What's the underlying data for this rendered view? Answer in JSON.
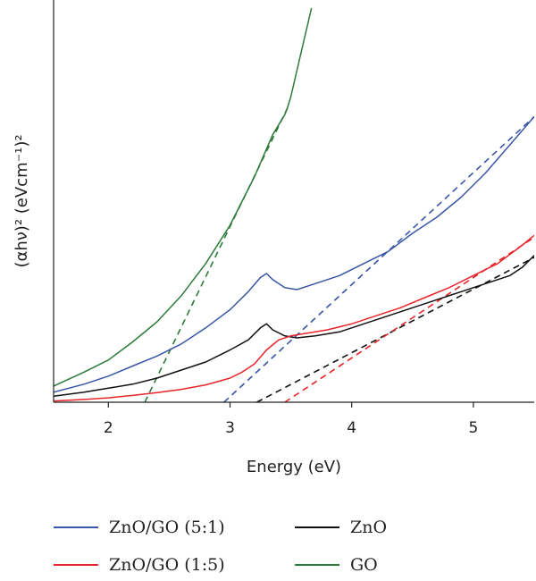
{
  "chart_data": {
    "type": "line",
    "xlabel": "Energy (eV)",
    "ylabel": "(αhν)² (eVcm⁻¹)²",
    "xlim": [
      1.55,
      5.5
    ],
    "ylim": [
      0,
      100
    ],
    "xticks": [
      2,
      3,
      4,
      5
    ],
    "grid": false,
    "legend_position": "bottom",
    "y_tick_labels_shown": false,
    "series": [
      {
        "name": "ZnO/GO (5:1)",
        "color": "#3a56a8",
        "x": [
          1.55,
          1.8,
          2.0,
          2.2,
          2.4,
          2.6,
          2.8,
          3.0,
          3.15,
          3.25,
          3.3,
          3.35,
          3.45,
          3.55,
          3.7,
          3.9,
          4.1,
          4.3,
          4.5,
          4.7,
          4.9,
          5.1,
          5.3,
          5.5
        ],
        "y": [
          2.5,
          4.5,
          6.5,
          9.0,
          11.5,
          14.5,
          18.5,
          23.0,
          27.5,
          31.0,
          32.0,
          30.5,
          28.5,
          28.0,
          29.5,
          31.5,
          34.5,
          37.5,
          42.0,
          46.0,
          51.0,
          57.0,
          64.0,
          71.0
        ]
      },
      {
        "name": "ZnO",
        "color": "#111111",
        "x": [
          1.55,
          1.8,
          2.0,
          2.2,
          2.4,
          2.6,
          2.8,
          3.0,
          3.15,
          3.25,
          3.3,
          3.35,
          3.45,
          3.55,
          3.7,
          3.9,
          4.1,
          4.3,
          4.5,
          4.7,
          4.9,
          5.1,
          5.3,
          5.4,
          5.5
        ],
        "y": [
          1.5,
          2.5,
          3.5,
          4.5,
          6.0,
          8.0,
          10.0,
          13.0,
          15.5,
          18.5,
          19.5,
          18.0,
          16.5,
          16.0,
          16.5,
          17.5,
          19.5,
          21.5,
          23.5,
          25.5,
          27.5,
          29.5,
          31.5,
          33.5,
          36.5
        ]
      },
      {
        "name": "ZnO/GO (1:5)",
        "color": "#e8252a",
        "x": [
          1.55,
          1.8,
          2.0,
          2.2,
          2.4,
          2.6,
          2.8,
          3.0,
          3.1,
          3.2,
          3.3,
          3.4,
          3.5,
          3.6,
          3.8,
          4.0,
          4.2,
          4.4,
          4.6,
          4.8,
          5.0,
          5.2,
          5.4,
          5.5
        ],
        "y": [
          0.3,
          0.7,
          1.1,
          1.7,
          2.4,
          3.2,
          4.3,
          6.0,
          7.5,
          9.5,
          13.0,
          15.5,
          16.5,
          17.0,
          18.0,
          19.5,
          21.5,
          23.5,
          26.0,
          28.5,
          31.5,
          34.5,
          39.0,
          41.5
        ]
      },
      {
        "name": "GO",
        "color": "#2d7a3a",
        "x": [
          1.55,
          1.8,
          2.0,
          2.2,
          2.4,
          2.6,
          2.8,
          3.0,
          3.2,
          3.35,
          3.45,
          3.47,
          3.5,
          3.6,
          3.67
        ],
        "y": [
          4.0,
          7.5,
          10.5,
          15.0,
          20.0,
          26.5,
          34.5,
          44.0,
          56.0,
          66.5,
          71.5,
          73.0,
          76.0,
          89.0,
          98.0
        ]
      }
    ],
    "tangent_lines": [
      {
        "series": "ZnO/GO (5:1)",
        "color": "#3a56a8",
        "x": [
          2.95,
          5.5
        ],
        "y": [
          0,
          71
        ]
      },
      {
        "series": "ZnO",
        "color": "#111111",
        "x": [
          3.22,
          5.5
        ],
        "y": [
          0,
          36
        ]
      },
      {
        "series": "ZnO/GO (1:5)",
        "color": "#e8252a",
        "x": [
          3.45,
          5.5
        ],
        "y": [
          0,
          41
        ]
      },
      {
        "series": "GO",
        "color": "#2d7a3a",
        "x": [
          2.3,
          3.47
        ],
        "y": [
          0,
          73
        ]
      }
    ],
    "legend_order": [
      "ZnO/GO (5:1)",
      "ZnO",
      "ZnO/GO (1:5)",
      "GO"
    ]
  }
}
